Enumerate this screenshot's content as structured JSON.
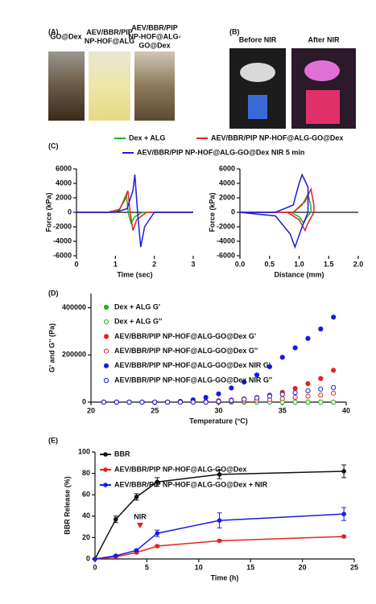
{
  "photo_panels": {
    "A": {
      "label": "(A)",
      "captions": [
        [
          "GO@Dex"
        ],
        [
          "AEV/BBR/PIP",
          "NP-HOF@ALG"
        ],
        [
          "AEV/BBR/PIP",
          "NP-HOF@ALG-",
          "GO@Dex"
        ]
      ]
    },
    "B": {
      "label": "(B)",
      "captions": [
        "Before NIR",
        "After NIR"
      ]
    }
  },
  "chart_data": [
    {
      "type": "line",
      "panel": "(C)",
      "xlabel": "Time (sec)",
      "ylabel": "Force (kPa)",
      "xlim": [
        0,
        3
      ],
      "xticks": [
        0,
        1,
        2,
        3
      ],
      "ylim": [
        -6000,
        6000
      ],
      "yticks": [
        -6000,
        -4000,
        -2000,
        0,
        2000,
        4000,
        6000
      ],
      "series": [
        {
          "name": "Dex + ALG",
          "color": "#1fb31f",
          "x": [
            0,
            0.8,
            1.1,
            1.2,
            1.28,
            1.33,
            1.4,
            1.5,
            1.7,
            3
          ],
          "values": [
            0,
            0,
            300,
            1500,
            2500,
            0,
            -1500,
            -600,
            0,
            0
          ]
        },
        {
          "name": "AEV/BBR/PIP NP-HOF@ALG-GO@Dex",
          "color": "#e8221c",
          "x": [
            0,
            0.8,
            1.1,
            1.25,
            1.32,
            1.38,
            1.45,
            1.55,
            1.8,
            3
          ],
          "values": [
            0,
            0,
            400,
            1800,
            3000,
            0,
            -2500,
            -1000,
            0,
            0
          ]
        },
        {
          "name": "AEV/BBR/PIP NP-HOF@ALG-GO@Dex NIR 5 min",
          "color": "#1a1ae6",
          "x": [
            0,
            1.0,
            1.3,
            1.45,
            1.5,
            1.57,
            1.65,
            1.75,
            2.0,
            3
          ],
          "values": [
            0,
            0,
            500,
            3000,
            5200,
            0,
            -4800,
            -2000,
            0,
            0
          ]
        }
      ]
    },
    {
      "type": "line",
      "xlabel": "Distance (mm)",
      "ylabel": "Force (kPa)",
      "xlim": [
        0,
        2
      ],
      "xticks": [
        {
          "value": 0,
          "label": "0.0"
        },
        {
          "value": 0.5,
          "label": "0.5"
        },
        {
          "value": 1,
          "label": "1.0"
        },
        {
          "value": 1.5,
          "label": "1.5"
        },
        {
          "value": 2,
          "label": "2.0"
        }
      ],
      "ylim": [
        -6000,
        6000
      ],
      "yticks": [
        -6000,
        -4000,
        -2000,
        0,
        2000,
        4000,
        6000
      ],
      "series": [
        {
          "color": "#1fb31f",
          "x": [
            0,
            0.9,
            1.05,
            1.15,
            1.2,
            1.2,
            1.12,
            1.08,
            1.0,
            0.85,
            0
          ],
          "values": [
            0,
            0,
            1000,
            2500,
            800,
            0,
            -800,
            -1500,
            -600,
            0,
            0
          ]
        },
        {
          "color": "#e8221c",
          "x": [
            0,
            0.9,
            1.1,
            1.2,
            1.25,
            1.25,
            1.15,
            1.1,
            1.0,
            0.8,
            0
          ],
          "values": [
            0,
            0,
            1500,
            3200,
            1000,
            0,
            -1500,
            -2500,
            -1000,
            0,
            0
          ]
        },
        {
          "color": "#1a1ae6",
          "x": [
            0,
            0.6,
            0.9,
            1.0,
            1.05,
            1.15,
            1.15,
            1.05,
            0.93,
            0.85,
            0.6,
            0
          ],
          "values": [
            0,
            0,
            1000,
            4000,
            5200,
            3500,
            0,
            -2000,
            -4800,
            -3000,
            -500,
            0
          ]
        }
      ]
    },
    {
      "type": "scatter",
      "panel": "(D)",
      "xlabel": "Temperature (°C)",
      "ylabel": "G' and G'' (Pa)",
      "x": [
        21,
        22,
        23,
        24,
        25,
        26,
        27,
        28,
        29,
        30,
        31,
        32,
        33,
        34,
        35,
        36,
        37,
        38,
        39
      ],
      "xlim": [
        20,
        40
      ],
      "xticks": [
        20,
        25,
        30,
        35,
        40
      ],
      "ylim": [
        0,
        460000
      ],
      "yticks": [
        0,
        200000,
        400000
      ],
      "series": [
        {
          "name": "Dex + ALG G'",
          "color": "#1fb31f",
          "filled": true,
          "values": [
            0,
            0,
            0,
            0,
            0,
            0,
            0,
            0,
            0,
            0,
            0,
            0,
            0,
            0,
            0,
            0,
            0,
            0,
            0
          ]
        },
        {
          "name": "Dex + ALG G''",
          "color": "#1fb31f",
          "filled": false,
          "values": [
            0,
            0,
            0,
            0,
            0,
            0,
            0,
            0,
            0,
            0,
            0,
            0,
            0,
            0,
            0,
            0,
            0,
            0,
            0
          ]
        },
        {
          "name": "AEV/BBR/PIP NP-HOF@ALG-GO@Dex G'",
          "color": "#e8221c",
          "filled": true,
          "values": [
            0,
            0,
            0,
            0,
            0,
            0,
            0,
            1000,
            3000,
            6000,
            9000,
            14000,
            20000,
            30000,
            42000,
            58000,
            78000,
            100000,
            135000
          ]
        },
        {
          "name": "AEV/BBR/PIP NP-HOF@ALG-GO@Dex G''",
          "color": "#e8221c",
          "filled": false,
          "values": [
            0,
            0,
            0,
            0,
            0,
            0,
            0,
            0,
            0,
            0,
            3000,
            5000,
            8000,
            11000,
            15000,
            20000,
            25000,
            30000,
            38000
          ]
        },
        {
          "name": "AEV/BBR/PIP NP-HOF@ALG-GO@Dex NIR G'",
          "color": "#1a1ae6",
          "filled": true,
          "values": [
            0,
            0,
            0,
            0,
            0,
            0,
            3000,
            10000,
            20000,
            35000,
            60000,
            85000,
            115000,
            150000,
            190000,
            230000,
            270000,
            310000,
            360000
          ]
        },
        {
          "name": "AEV/BBR/PIP NP-HOF@ALG-GO@Dex NIR G''",
          "color": "#1a1ae6",
          "filled": false,
          "values": [
            0,
            0,
            0,
            0,
            0,
            0,
            0,
            0,
            0,
            3000,
            7000,
            12000,
            18000,
            25000,
            33000,
            40000,
            48000,
            55000,
            62000
          ]
        }
      ]
    },
    {
      "type": "line",
      "panel": "(E)",
      "xlabel": "Time (h)",
      "ylabel": "BBR Release (%)",
      "markers": true,
      "annotation": "NIR",
      "x": [
        0,
        2,
        4,
        6,
        12,
        24
      ],
      "xlim": [
        0,
        25
      ],
      "xticks": [
        0,
        5,
        10,
        15,
        20,
        25
      ],
      "ylim": [
        0,
        100
      ],
      "yticks": [
        0,
        20,
        40,
        60,
        80,
        100
      ],
      "series": [
        {
          "name": "BBR",
          "color": "#111111",
          "values": [
            0,
            37,
            58,
            72,
            79,
            82
          ],
          "errors": [
            0,
            3,
            3,
            4,
            4,
            6
          ]
        },
        {
          "name": "AEV/BBR/PIP NP-HOF@ALG-GO@Dex",
          "color": "#e8221c",
          "values": [
            0,
            2,
            6,
            12,
            17,
            21
          ],
          "errors": [
            0,
            0.5,
            1,
            1,
            1,
            1
          ]
        },
        {
          "name": "AEV/BBR/PIP NP-HOF@ALG-GO@Dex  + NIR",
          "color": "#1a1ae6",
          "values": [
            0,
            3,
            8,
            24,
            36,
            42
          ],
          "errors": [
            0,
            0.5,
            1,
            3,
            7,
            6
          ]
        }
      ]
    }
  ]
}
